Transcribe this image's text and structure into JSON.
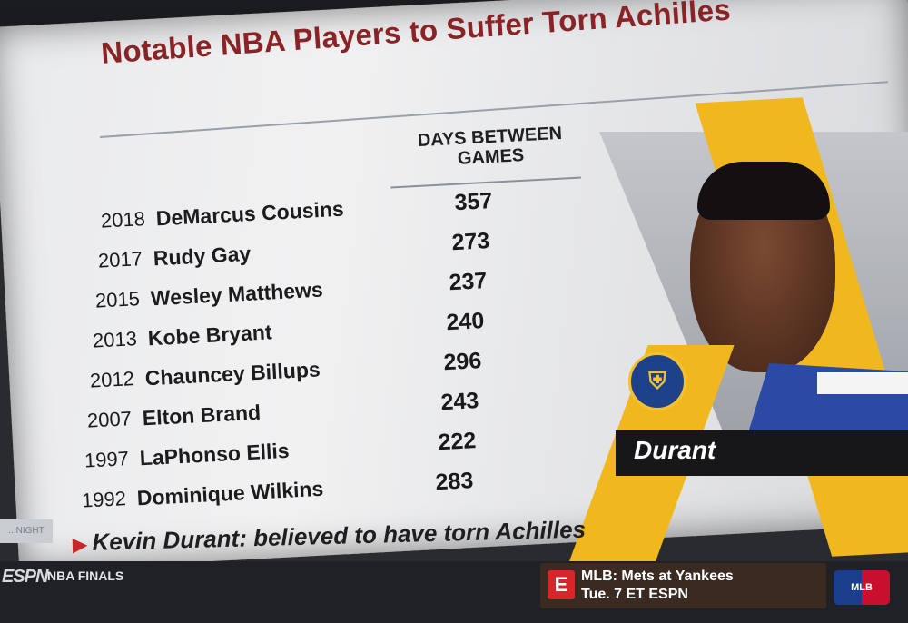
{
  "title": "Notable NBA Players to Suffer Torn Achilles",
  "column_header_line1": "DAYS BETWEEN",
  "column_header_line2": "GAMES",
  "rows": [
    {
      "year": "2018",
      "name": "DeMarcus Cousins",
      "days": "357"
    },
    {
      "year": "2017",
      "name": "Rudy Gay",
      "days": "273"
    },
    {
      "year": "2015",
      "name": "Wesley Matthews",
      "days": "237"
    },
    {
      "year": "2013",
      "name": "Kobe Bryant",
      "days": "240"
    },
    {
      "year": "2012",
      "name": "Chauncey Billups",
      "days": "296"
    },
    {
      "year": "2007",
      "name": "Elton Brand",
      "days": "243"
    },
    {
      "year": "1997",
      "name": "LaPhonso Ellis",
      "days": "222"
    },
    {
      "year": "1992",
      "name": "Dominique Wilkins",
      "days": "283"
    }
  ],
  "player_name": "Durant",
  "ticker_text": "Kevin Durant: believed to have torn Achilles",
  "tonight_tag": "...NIGHT",
  "bottom_bar": {
    "network": "ESPN",
    "league": "NBA FINALS",
    "promo_line1": "MLB: Mets at Yankees",
    "promo_line2": "Tue. 7 ET ESPN",
    "promo_e": "E",
    "mlb": "MLB"
  },
  "colors": {
    "title": "#8a2325",
    "accent_yellow": "#f0b81e",
    "warriors_blue": "#1d428a",
    "ticker_arrow": "#c7262a"
  }
}
